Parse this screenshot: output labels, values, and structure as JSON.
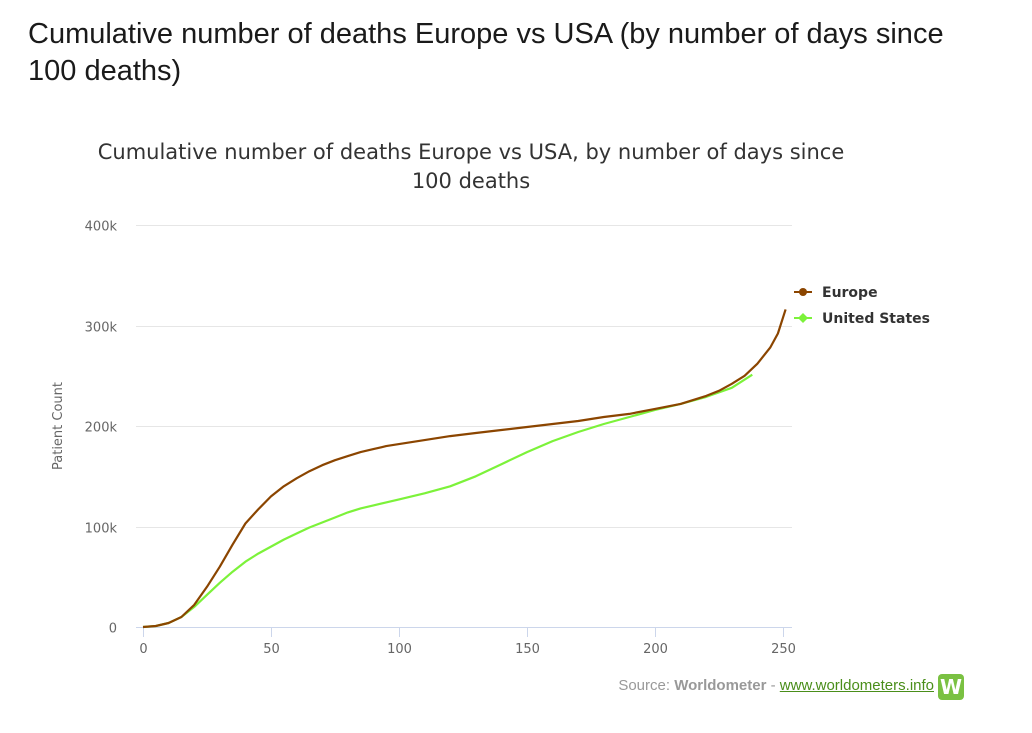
{
  "page": {
    "title": "Cumulative number of deaths Europe vs USA (by number of days since 100 deaths)"
  },
  "source": {
    "prefix": "Source: ",
    "name": "Worldometer",
    "separator": " - ",
    "link": "www.worldometers.info",
    "logo_letter": "W",
    "logo_color": "#7ac142"
  },
  "chart_data": {
    "type": "line",
    "title_lines": [
      "Cumulative number of deaths Europe vs USA, by number of days since",
      "100 deaths"
    ],
    "xlabel": "",
    "ylabel": "Patient Count",
    "xlim": [
      0,
      255
    ],
    "ylim": [
      0,
      400000
    ],
    "xticks": [
      0,
      50,
      100,
      150,
      200,
      250
    ],
    "xtick_labels": [
      "0",
      "50",
      "100",
      "150",
      "200",
      "250"
    ],
    "yticks": [
      0,
      100000,
      200000,
      300000,
      400000
    ],
    "ytick_labels": [
      "0",
      "100k",
      "200k",
      "300k",
      "400k"
    ],
    "grid": true,
    "legend_position": "right",
    "series": [
      {
        "name": "Europe",
        "color": "#8b4500",
        "x": [
          0,
          5,
          10,
          15,
          20,
          25,
          30,
          35,
          40,
          45,
          50,
          55,
          60,
          65,
          70,
          75,
          80,
          85,
          90,
          95,
          100,
          110,
          120,
          130,
          140,
          150,
          160,
          170,
          180,
          190,
          200,
          210,
          220,
          225,
          230,
          235,
          240,
          245,
          248,
          251
        ],
        "values": [
          0,
          1000,
          4000,
          10000,
          22000,
          40000,
          60000,
          82000,
          103000,
          117000,
          130000,
          140000,
          148000,
          155000,
          161000,
          166000,
          170000,
          174000,
          177000,
          180000,
          182000,
          186000,
          190000,
          193000,
          196000,
          199000,
          202000,
          205000,
          209000,
          212000,
          217000,
          222000,
          230000,
          235000,
          242000,
          250000,
          262000,
          278000,
          292000,
          316000
        ]
      },
      {
        "name": "United States",
        "color": "#7cf23a",
        "x": [
          0,
          5,
          10,
          15,
          20,
          25,
          30,
          35,
          40,
          45,
          50,
          55,
          60,
          65,
          70,
          75,
          80,
          85,
          90,
          100,
          110,
          120,
          130,
          140,
          150,
          160,
          170,
          180,
          190,
          200,
          210,
          220,
          230,
          238
        ],
        "values": [
          0,
          1000,
          4000,
          10000,
          20000,
          32000,
          44000,
          55000,
          65000,
          73000,
          80000,
          87000,
          93000,
          99000,
          104000,
          109000,
          114000,
          118000,
          121000,
          127000,
          133000,
          140000,
          150000,
          162000,
          174000,
          185000,
          194000,
          202000,
          209000,
          216000,
          222000,
          229000,
          238000,
          251000
        ]
      }
    ]
  }
}
